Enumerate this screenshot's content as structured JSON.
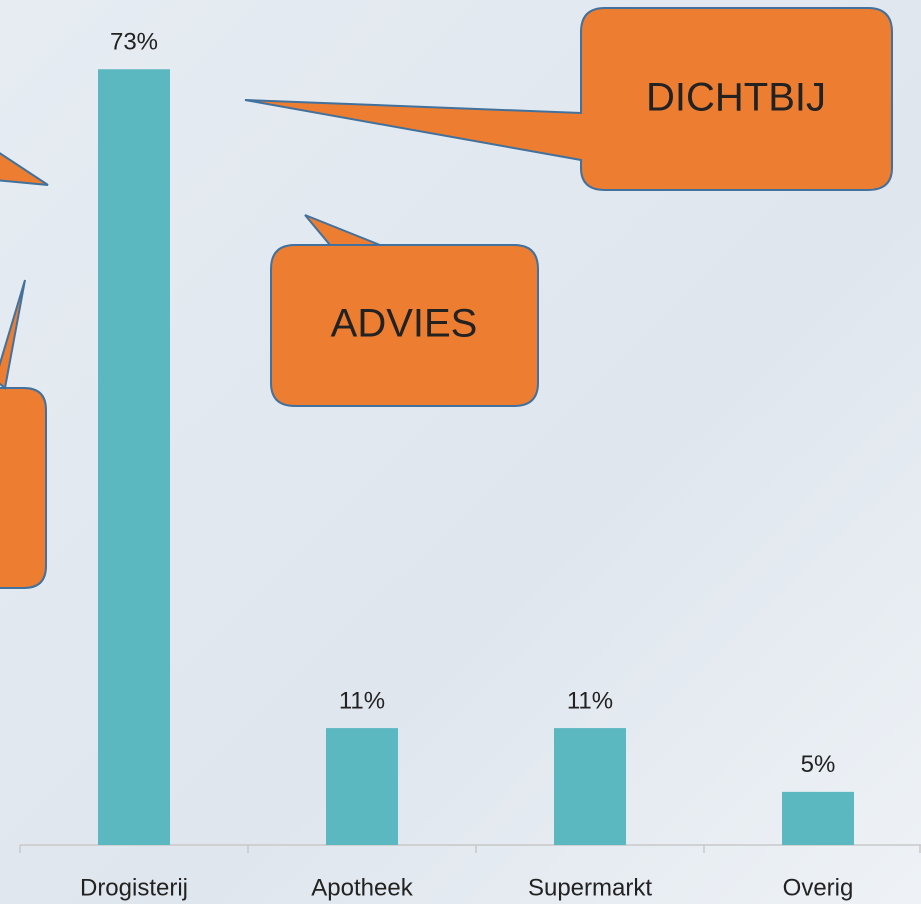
{
  "chart_data": {
    "type": "bar",
    "categories": [
      "Drogisterij",
      "Apotheek",
      "Supermarkt",
      "Overig"
    ],
    "values": [
      73,
      11,
      11,
      5
    ],
    "value_labels": [
      "73%",
      "11%",
      "11%",
      "5%"
    ],
    "color": "#5bb7c0",
    "ylim": [
      0,
      75
    ],
    "annotations": [
      "DICHTBIJ",
      "ADVIES"
    ]
  }
}
